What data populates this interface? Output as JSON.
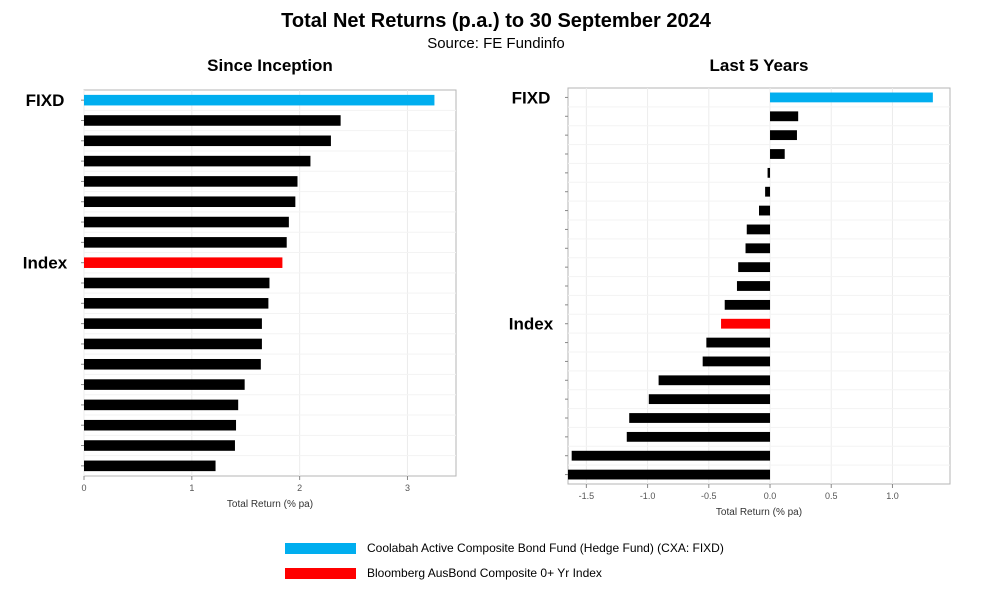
{
  "header": {
    "title": "Total Net Returns (p.a.) to 30 September 2024",
    "subtitle": "Source: FE Fundinfo"
  },
  "colors": {
    "fund": "#00aeef",
    "index": "#ff0000",
    "peer": "#000000"
  },
  "legend": [
    {
      "label": "Coolabah Active Composite Bond Fund (Hedge Fund) (CXA: FIXD)",
      "color": "#00aeef"
    },
    {
      "label": "Bloomberg AusBond Composite 0+ Yr Index",
      "color": "#ff0000"
    }
  ],
  "chart_data": [
    {
      "type": "bar",
      "orientation": "horizontal",
      "title": "Since Inception",
      "xlabel": "Total Return (% pa)",
      "xlim": [
        0,
        3.45
      ],
      "xticks": [
        0,
        1,
        2,
        3
      ],
      "xtick_labels": [
        "0",
        "1",
        "2",
        "3"
      ],
      "grid": true,
      "values": [
        3.25,
        2.38,
        2.29,
        2.1,
        1.98,
        1.96,
        1.9,
        1.88,
        1.84,
        1.72,
        1.71,
        1.65,
        1.65,
        1.64,
        1.49,
        1.43,
        1.41,
        1.4,
        1.22
      ],
      "highlight": [
        {
          "index": 0,
          "role": "fund",
          "label": "FIXD"
        },
        {
          "index": 8,
          "role": "index",
          "label": "Index"
        }
      ]
    },
    {
      "type": "bar",
      "orientation": "horizontal",
      "title": "Last 5 Years",
      "xlabel": "Total Return (% pa)",
      "xlim": [
        -1.65,
        1.47
      ],
      "xticks": [
        -1.5,
        -1.0,
        -0.5,
        0.0,
        0.5,
        1.0
      ],
      "xtick_labels": [
        "-1.5",
        "-1.0",
        "-0.5",
        "0.0",
        "0.5",
        "1.0"
      ],
      "grid": true,
      "values": [
        1.33,
        0.23,
        0.22,
        0.12,
        -0.02,
        -0.04,
        -0.09,
        -0.19,
        -0.2,
        -0.26,
        -0.27,
        -0.37,
        -0.4,
        -0.52,
        -0.55,
        -0.91,
        -0.99,
        -1.15,
        -1.17,
        -1.62,
        -1.65
      ],
      "highlight": [
        {
          "index": 0,
          "role": "fund",
          "label": "FIXD"
        },
        {
          "index": 12,
          "role": "index",
          "label": "Index"
        }
      ]
    }
  ]
}
